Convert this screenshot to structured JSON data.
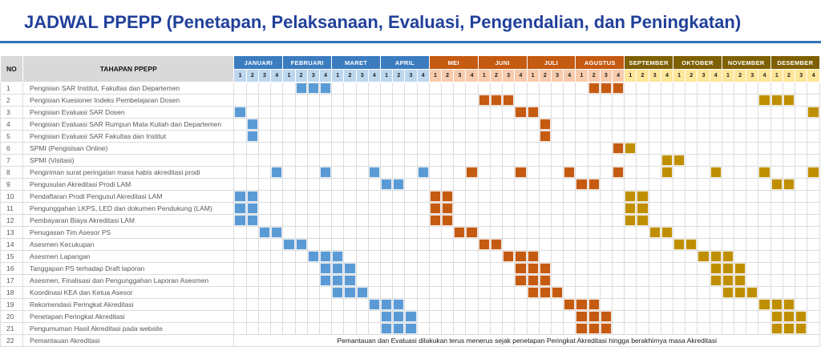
{
  "title": "JADWAL PPEPP (Penetapan, Pelaksanaan, Evaluasi, Pengendalian, dan Peningkatan)",
  "table": {
    "no_header": "NO",
    "stage_header": "TAHAPAN PPEPP",
    "week_labels": [
      "1",
      "2",
      "3",
      "4"
    ]
  },
  "chart_data": {
    "type": "table",
    "subtype": "gantt-schedule",
    "title": "JADWAL PPEPP (Penetapan, Pelaksanaan, Evaluasi, Pengendalian, dan Peningkatan)",
    "weeks_per_month": 4,
    "months": [
      {
        "name": "JANUARI",
        "group": "blue"
      },
      {
        "name": "FEBRUARI",
        "group": "blue"
      },
      {
        "name": "MARET",
        "group": "blue"
      },
      {
        "name": "APRIL",
        "group": "blue"
      },
      {
        "name": "MEI",
        "group": "orange"
      },
      {
        "name": "JUNI",
        "group": "orange"
      },
      {
        "name": "JULI",
        "group": "orange"
      },
      {
        "name": "AGUSTUS",
        "group": "orange"
      },
      {
        "name": "SEPTEMBER",
        "group": "gold"
      },
      {
        "name": "OKTOBER",
        "group": "gold"
      },
      {
        "name": "NOVEMBER",
        "group": "gold"
      },
      {
        "name": "DESEMBER",
        "group": "gold"
      }
    ],
    "tasks": [
      {
        "no": 1,
        "label": "Pengisian SAR Institut, Fakultas dan Departemen",
        "weeks": [
          6,
          7,
          8,
          30,
          31,
          32
        ]
      },
      {
        "no": 2,
        "label": "Pengisian Kuesioner Indeks Pembelajaran Dosen",
        "weeks": [
          21,
          22,
          23,
          44,
          45,
          46
        ]
      },
      {
        "no": 3,
        "label": "Pengisian Evaluasi SAR Dosen",
        "weeks": [
          1,
          24,
          25,
          48
        ]
      },
      {
        "no": 4,
        "label": "Pengisian Evaluasi SAR Rumpun Mata Kuliah dan Departemen",
        "weeks": [
          2,
          26
        ]
      },
      {
        "no": 5,
        "label": "Pengisian Evaluasi SAR Fakultas dan Institut",
        "weeks": [
          2,
          26
        ]
      },
      {
        "no": 6,
        "label": "SPMI (Pengisisan Online)",
        "weeks": [
          32,
          33
        ]
      },
      {
        "no": 7,
        "label": "SPMI (Visitasi)",
        "weeks": [
          36,
          37
        ]
      },
      {
        "no": 8,
        "label": "Pengiriman surat peringatan masa habis akreditasi prodi",
        "weeks": [
          4,
          8,
          12,
          16,
          20,
          24,
          28,
          32,
          36,
          40,
          44,
          48
        ]
      },
      {
        "no": 9,
        "label": "Pengusulan Akreditasi Prodi LAM",
        "weeks": [
          13,
          14,
          29,
          30,
          45,
          46
        ]
      },
      {
        "no": 10,
        "label": "Pendaftaran Prodi Pengusul Akreditasi LAM",
        "weeks": [
          1,
          2,
          17,
          18,
          33,
          34
        ]
      },
      {
        "no": 11,
        "label": "Pengunggahan LKPS, LED dan dokumen Pendukung (LAM)",
        "weeks": [
          1,
          2,
          17,
          18,
          33,
          34
        ]
      },
      {
        "no": 12,
        "label": "Pembayaran Biaya Akreditasi LAM",
        "weeks": [
          1,
          2,
          17,
          18,
          33,
          34
        ]
      },
      {
        "no": 13,
        "label": "Penugasan Tim Asesor PS",
        "weeks": [
          3,
          4,
          19,
          20,
          35,
          36
        ]
      },
      {
        "no": 14,
        "label": "Asesmen Kecukupan",
        "weeks": [
          5,
          6,
          21,
          22,
          37,
          38
        ]
      },
      {
        "no": 15,
        "label": "Asesmen Lapangan",
        "weeks": [
          7,
          8,
          9,
          23,
          24,
          25,
          39,
          40,
          41
        ]
      },
      {
        "no": 16,
        "label": "Tanggapan PS terhadap Draft laporan",
        "weeks": [
          8,
          9,
          10,
          24,
          25,
          26,
          40,
          41,
          42
        ]
      },
      {
        "no": 17,
        "label": "Asesmen, Finalisasi dan Pengunggahan Laporan Asesmen",
        "weeks": [
          8,
          9,
          10,
          24,
          25,
          26,
          40,
          41,
          42
        ]
      },
      {
        "no": 18,
        "label": "Koordinasi KEA dan Ketua Asesor",
        "weeks": [
          9,
          10,
          11,
          25,
          26,
          27,
          41,
          42,
          43
        ]
      },
      {
        "no": 19,
        "label": "Rekomendasi Peringkat Akreditasi",
        "weeks": [
          12,
          13,
          14,
          28,
          29,
          30,
          44,
          45,
          46
        ]
      },
      {
        "no": 20,
        "label": "Penetapan Peringkat Akreditasi",
        "weeks": [
          13,
          14,
          15,
          29,
          30,
          31,
          45,
          46,
          47
        ]
      },
      {
        "no": 21,
        "label": "Pengumuman Hasil Akreditasi pada website",
        "weeks": [
          13,
          14,
          15,
          29,
          30,
          31,
          45,
          46,
          47
        ]
      },
      {
        "no": 22,
        "label": "Pemantauan Akreditasi",
        "weeks": [],
        "note": "Pemantauan dan Evaluasi dilakukan terus menerus sejak penetapan Peringkat Akreditasi hingga berakhirnya masa Akreditasi"
      }
    ]
  },
  "colors": {
    "title_color": "#21409A",
    "rule_color": "#2E75B6",
    "gray_head": "#D9D9D9",
    "head_blue": "#3B7CBF",
    "head_orange": "#C55A11",
    "head_gold": "#7F6000",
    "light_blue": "#BDD7EE",
    "light_orange": "#F8CBAD",
    "light_gold": "#FFE699",
    "fill_blue": "#5B9BD5",
    "fill_orange": "#C55A11",
    "fill_gold": "#BF8F00"
  }
}
